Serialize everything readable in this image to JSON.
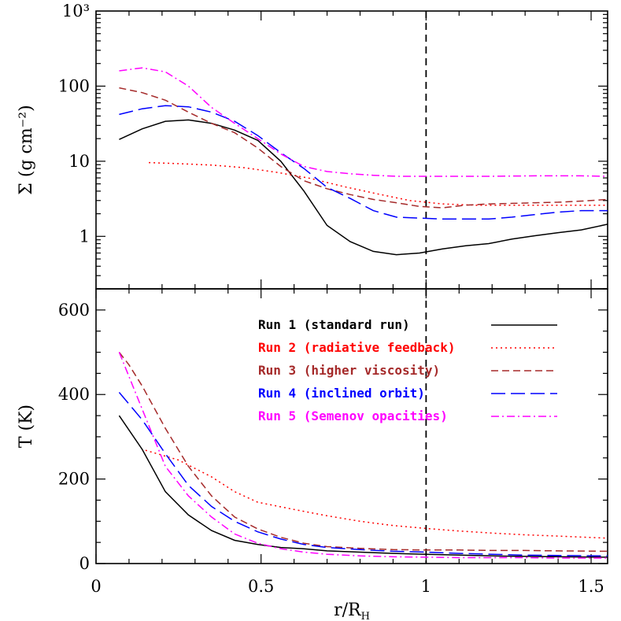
{
  "chart_data": [
    {
      "type": "line",
      "panel": "top",
      "ylabel": "Σ (g cm⁻²)",
      "yscale": "log",
      "ylim": [
        0.2,
        1000
      ],
      "xlim": [
        0,
        1.55
      ],
      "yticklabels": [
        "1",
        "10",
        "100",
        "10³"
      ],
      "ytickvalues": [
        1,
        10,
        100,
        1000
      ],
      "vline_x": 1,
      "series": [
        {
          "name": "Run 1 (standard run)",
          "color": "#000000",
          "dash": "solid",
          "x": [
            0.07,
            0.14,
            0.21,
            0.28,
            0.35,
            0.42,
            0.49,
            0.56,
            0.63,
            0.7,
            0.77,
            0.84,
            0.91,
            0.98,
            1.05,
            1.12,
            1.19,
            1.26,
            1.33,
            1.4,
            1.47,
            1.55
          ],
          "y": [
            19.5,
            27,
            34,
            35.5,
            32,
            26,
            19,
            10,
            4,
            1.4,
            0.85,
            0.63,
            0.57,
            0.6,
            0.68,
            0.75,
            0.8,
            0.92,
            1.02,
            1.12,
            1.22,
            1.45
          ]
        },
        {
          "name": "Run 2 (radiative feedback)",
          "color": "#ff0000",
          "dash": "dotted",
          "x": [
            0.16,
            0.25,
            0.35,
            0.45,
            0.55,
            0.65,
            0.75,
            0.85,
            0.95,
            1.05,
            1.15,
            1.25,
            1.35,
            1.45,
            1.55
          ],
          "y": [
            9.6,
            9.3,
            8.9,
            8.2,
            7.1,
            5.9,
            4.6,
            3.7,
            3.0,
            2.7,
            2.6,
            2.6,
            2.6,
            2.6,
            2.6
          ]
        },
        {
          "name": "Run 3 (higher viscosity)",
          "color": "#a52a2a",
          "dash": "dashed",
          "x": [
            0.07,
            0.14,
            0.21,
            0.28,
            0.35,
            0.42,
            0.49,
            0.56,
            0.63,
            0.7,
            0.77,
            0.84,
            0.91,
            0.98,
            1.05,
            1.12,
            1.19,
            1.26,
            1.33,
            1.4,
            1.47,
            1.55
          ],
          "y": [
            95,
            82,
            65,
            45,
            32,
            24,
            15,
            8.5,
            5.5,
            4.3,
            3.6,
            3.1,
            2.8,
            2.5,
            2.4,
            2.6,
            2.7,
            2.75,
            2.8,
            2.85,
            2.95,
            3.1
          ]
        },
        {
          "name": "Run 4 (inclined orbit)",
          "color": "#0000ff",
          "dash": "longdash",
          "x": [
            0.07,
            0.14,
            0.21,
            0.28,
            0.35,
            0.42,
            0.49,
            0.56,
            0.63,
            0.7,
            0.77,
            0.84,
            0.91,
            0.98,
            1.05,
            1.12,
            1.19,
            1.26,
            1.33,
            1.4,
            1.47,
            1.55
          ],
          "y": [
            42,
            50,
            55,
            53,
            45,
            34,
            22,
            13,
            8,
            4.5,
            3.2,
            2.2,
            1.8,
            1.75,
            1.7,
            1.7,
            1.7,
            1.8,
            1.95,
            2.1,
            2.2,
            2.2
          ]
        },
        {
          "name": "Run 5 (Semenov opacities)",
          "color": "#ff00ff",
          "dash": "dashdot",
          "x": [
            0.07,
            0.14,
            0.21,
            0.28,
            0.35,
            0.42,
            0.49,
            0.56,
            0.63,
            0.7,
            0.77,
            0.84,
            0.91,
            0.98,
            1.05,
            1.12,
            1.19,
            1.26,
            1.33,
            1.4,
            1.47,
            1.55
          ],
          "y": [
            160,
            175,
            155,
            100,
            52,
            32,
            20,
            12.5,
            8.5,
            7.3,
            6.8,
            6.5,
            6.3,
            6.3,
            6.3,
            6.3,
            6.3,
            6.35,
            6.4,
            6.4,
            6.4,
            6.3
          ]
        }
      ]
    },
    {
      "type": "line",
      "panel": "bottom",
      "xlabel": "r/R",
      "xlabel_sub": "H",
      "ylabel": "T (K)",
      "ylim": [
        0,
        650
      ],
      "xlim": [
        0,
        1.55
      ],
      "xticklabels": [
        "0",
        "0.5",
        "1",
        "1.5"
      ],
      "xtickvalues": [
        0,
        0.5,
        1,
        1.5
      ],
      "yticklabels": [
        "0",
        "200",
        "400",
        "600"
      ],
      "ytickvalues": [
        0,
        200,
        400,
        600
      ],
      "vline_x": 1,
      "legend_position": "top-right",
      "series": [
        {
          "name": "Run 1 (standard run)",
          "color": "#000000",
          "dash": "solid",
          "x": [
            0.07,
            0.14,
            0.21,
            0.28,
            0.35,
            0.42,
            0.49,
            0.56,
            0.63,
            0.7,
            0.8,
            0.9,
            1.0,
            1.1,
            1.2,
            1.3,
            1.4,
            1.55
          ],
          "y": [
            350,
            270,
            170,
            115,
            78,
            55,
            45,
            38,
            35,
            30,
            27,
            24,
            22,
            20,
            18,
            17,
            16,
            15
          ]
        },
        {
          "name": "Run 2 (radiative feedback)",
          "color": "#ff0000",
          "dash": "dotted",
          "x": [
            0.15,
            0.25,
            0.35,
            0.42,
            0.49,
            0.6,
            0.7,
            0.8,
            0.9,
            1.0,
            1.1,
            1.2,
            1.3,
            1.4,
            1.55
          ],
          "y": [
            268,
            245,
            205,
            170,
            145,
            128,
            113,
            100,
            90,
            83,
            77,
            72,
            68,
            65,
            60
          ]
        },
        {
          "name": "Run 3 (higher viscosity)",
          "color": "#a52a2a",
          "dash": "dashed",
          "x": [
            0.07,
            0.1,
            0.14,
            0.21,
            0.28,
            0.35,
            0.42,
            0.49,
            0.56,
            0.63,
            0.7,
            0.8,
            0.9,
            1.0,
            1.1,
            1.2,
            1.3,
            1.4,
            1.55
          ],
          "y": [
            500,
            470,
            420,
            320,
            230,
            160,
            110,
            82,
            62,
            48,
            40,
            36,
            33,
            32,
            32,
            31,
            31,
            30,
            29
          ]
        },
        {
          "name": "Run 4 (inclined orbit)",
          "color": "#0000ff",
          "dash": "longdash",
          "x": [
            0.07,
            0.14,
            0.21,
            0.28,
            0.35,
            0.42,
            0.49,
            0.56,
            0.63,
            0.7,
            0.8,
            0.9,
            1.0,
            1.1,
            1.2,
            1.3,
            1.4,
            1.55
          ],
          "y": [
            405,
            340,
            260,
            185,
            135,
            100,
            75,
            58,
            45,
            38,
            33,
            29,
            27,
            24,
            22,
            20,
            19,
            18
          ]
        },
        {
          "name": "Run 5 (Semenov opacities)",
          "color": "#ff00ff",
          "dash": "dashdot",
          "x": [
            0.07,
            0.14,
            0.21,
            0.28,
            0.35,
            0.42,
            0.49,
            0.56,
            0.63,
            0.7,
            0.8,
            0.9,
            1.0,
            1.1,
            1.2,
            1.3,
            1.4,
            1.55
          ],
          "y": [
            500,
            365,
            230,
            160,
            110,
            70,
            48,
            35,
            27,
            22,
            18,
            16,
            15,
            14,
            14,
            14,
            13,
            13
          ]
        }
      ]
    }
  ]
}
